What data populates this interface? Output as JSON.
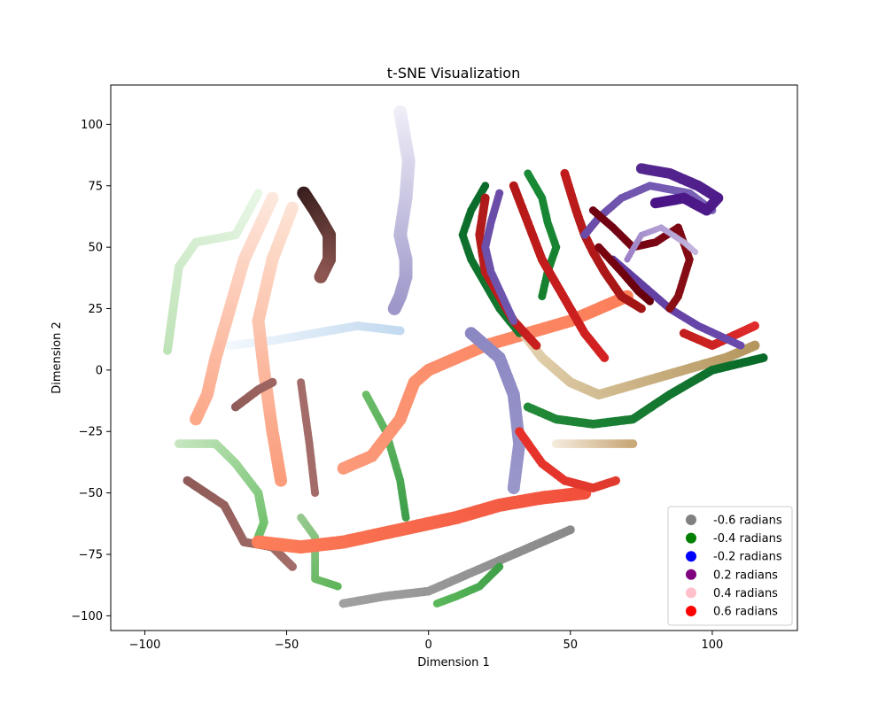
{
  "chart_data": {
    "type": "scatter",
    "title": "t-SNE Visualization",
    "xlabel": "Dimension 1",
    "ylabel": "Dimension 2",
    "xlim": [
      -112,
      130
    ],
    "ylim": [
      -106,
      116
    ],
    "x_ticks": [
      -100,
      -50,
      0,
      50,
      100
    ],
    "y_ticks": [
      -100,
      -75,
      -50,
      -25,
      0,
      25,
      50,
      75,
      100
    ],
    "x_tick_labels": [
      "−100",
      "−50",
      "0",
      "50",
      "100"
    ],
    "y_tick_labels": [
      "−100",
      "−75",
      "−50",
      "−25",
      "0",
      "25",
      "50",
      "75",
      "100"
    ],
    "grid": false,
    "legend_position": "bottom-right",
    "legend": [
      {
        "label": "-0.6 radians",
        "color": "#808080"
      },
      {
        "label": "-0.4 radians",
        "color": "#008000"
      },
      {
        "label": "-0.2 radians",
        "color": "#0000ff"
      },
      {
        "label": "0.2 radians",
        "color": "#800080"
      },
      {
        "label": "0.4 radians",
        "color": "#ffc0cb"
      },
      {
        "label": "0.6 radians",
        "color": "#ff0000"
      }
    ],
    "strands": [
      {
        "c1": "#f0eef8",
        "c2": "#9d98c9",
        "w": 15,
        "pts": [
          [
            -10,
            105
          ],
          [
            -7,
            85
          ],
          [
            -8,
            70
          ],
          [
            -10,
            55
          ],
          [
            -8,
            45
          ],
          [
            -8,
            38
          ],
          [
            -10,
            30
          ],
          [
            -12,
            25
          ]
        ]
      },
      {
        "c1": "#f3f8fd",
        "c2": "#c3daf0",
        "w": 10,
        "pts": [
          [
            -70,
            10
          ],
          [
            -55,
            12
          ],
          [
            -40,
            15
          ],
          [
            -25,
            18
          ],
          [
            -10,
            16
          ]
        ]
      },
      {
        "c1": "#e8f6e6",
        "c2": "#bfe3b8",
        "w": 10,
        "pts": [
          [
            -60,
            72
          ],
          [
            -68,
            55
          ],
          [
            -82,
            52
          ],
          [
            -88,
            42
          ],
          [
            -90,
            25
          ],
          [
            -92,
            8
          ]
        ]
      },
      {
        "c1": "#fde8de",
        "c2": "#fca98a",
        "w": 14,
        "pts": [
          [
            -55,
            70
          ],
          [
            -65,
            45
          ],
          [
            -70,
            25
          ],
          [
            -75,
            5
          ],
          [
            -78,
            -10
          ],
          [
            -82,
            -20
          ]
        ]
      },
      {
        "c1": "#fde4d6",
        "c2": "#fb9d7c",
        "w": 14,
        "pts": [
          [
            -48,
            66
          ],
          [
            -55,
            45
          ],
          [
            -60,
            20
          ],
          [
            -58,
            0
          ],
          [
            -55,
            -25
          ],
          [
            -52,
            -45
          ]
        ]
      },
      {
        "c1": "#3a1f1e",
        "c2": "#8c5550",
        "w": 15,
        "pts": [
          [
            -44,
            72
          ],
          [
            -40,
            65
          ],
          [
            -35,
            55
          ],
          [
            -35,
            45
          ],
          [
            -38,
            38
          ]
        ]
      },
      {
        "c1": "#c7e6c0",
        "c2": "#6dbf68",
        "w": 10,
        "pts": [
          [
            -88,
            -30
          ],
          [
            -75,
            -30
          ],
          [
            -68,
            -38
          ],
          [
            -60,
            -50
          ],
          [
            -58,
            -62
          ],
          [
            -60,
            -68
          ]
        ]
      },
      {
        "c1": "#97c98f",
        "c2": "#5fb55a",
        "w": 9,
        "pts": [
          [
            -45,
            -60
          ],
          [
            -40,
            -68
          ],
          [
            -40,
            -85
          ],
          [
            -32,
            -88
          ]
        ]
      },
      {
        "c1": "#6cbd68",
        "c2": "#3e9f4a",
        "w": 9,
        "pts": [
          [
            -22,
            -10
          ],
          [
            -15,
            -25
          ],
          [
            -10,
            -45
          ],
          [
            -8,
            -60
          ]
        ]
      },
      {
        "c1": "#8f5b58",
        "c2": "#a26c68",
        "w": 10,
        "pts": [
          [
            -85,
            -45
          ],
          [
            -72,
            -55
          ],
          [
            -65,
            -70
          ],
          [
            -55,
            -72
          ],
          [
            -48,
            -80
          ]
        ]
      },
      {
        "c1": "#8f5b58",
        "c2": "#9e6662",
        "w": 10,
        "pts": [
          [
            -68,
            -15
          ],
          [
            -60,
            -8
          ],
          [
            -55,
            -5
          ]
        ]
      },
      {
        "c1": "#a36c68",
        "c2": "#a36c68",
        "w": 9,
        "pts": [
          [
            -45,
            -5
          ],
          [
            -42,
            -30
          ],
          [
            -40,
            -50
          ]
        ]
      },
      {
        "c1": "#fb9a7a",
        "c2": "#fc7f5a",
        "w": 14,
        "pts": [
          [
            -30,
            -40
          ],
          [
            -20,
            -35
          ],
          [
            -10,
            -20
          ],
          [
            -5,
            -5
          ],
          [
            0,
            0
          ],
          [
            10,
            5
          ],
          [
            20,
            10
          ],
          [
            35,
            15
          ],
          [
            50,
            20
          ],
          [
            70,
            30
          ]
        ]
      },
      {
        "c1": "#fc7f5a",
        "c2": "#f2503c",
        "w": 15,
        "pts": [
          [
            -60,
            -70
          ],
          [
            -45,
            -72
          ],
          [
            -30,
            -70
          ],
          [
            -10,
            -65
          ],
          [
            10,
            -60
          ],
          [
            25,
            -55
          ],
          [
            40,
            -52
          ],
          [
            55,
            -50
          ]
        ]
      },
      {
        "c1": "#8b87c2",
        "c2": "#9996ca",
        "w": 14,
        "pts": [
          [
            15,
            15
          ],
          [
            25,
            5
          ],
          [
            30,
            -10
          ],
          [
            32,
            -30
          ],
          [
            30,
            -48
          ]
        ]
      },
      {
        "c1": "#e8d8b8",
        "c2": "#b5965e",
        "w": 11,
        "pts": [
          [
            30,
            20
          ],
          [
            40,
            5
          ],
          [
            50,
            -5
          ],
          [
            60,
            -10
          ],
          [
            75,
            -5
          ],
          [
            90,
            0
          ],
          [
            105,
            5
          ],
          [
            115,
            10
          ]
        ]
      },
      {
        "c1": "#f5ebdc",
        "c2": "#c9a87a",
        "w": 10,
        "pts": [
          [
            45,
            -30
          ],
          [
            52,
            -30
          ],
          [
            62,
            -30
          ],
          [
            72,
            -30
          ]
        ]
      },
      {
        "c1": "#228a38",
        "c2": "#0a6a2a",
        "w": 10,
        "pts": [
          [
            35,
            -15
          ],
          [
            45,
            -20
          ],
          [
            58,
            -22
          ],
          [
            72,
            -20
          ],
          [
            85,
            -10
          ],
          [
            100,
            0
          ],
          [
            118,
            5
          ]
        ]
      },
      {
        "c1": "#0a6a2a",
        "c2": "#13792f",
        "w": 9,
        "pts": [
          [
            20,
            75
          ],
          [
            15,
            65
          ],
          [
            12,
            55
          ],
          [
            15,
            45
          ],
          [
            20,
            35
          ],
          [
            25,
            25
          ],
          [
            32,
            15
          ]
        ]
      },
      {
        "c1": "#1a8a36",
        "c2": "#16802f",
        "w": 9,
        "pts": [
          [
            35,
            80
          ],
          [
            40,
            70
          ],
          [
            42,
            60
          ],
          [
            45,
            50
          ],
          [
            42,
            40
          ],
          [
            40,
            30
          ]
        ]
      },
      {
        "c1": "#ad1a1a",
        "c2": "#c91e1e",
        "w": 10,
        "pts": [
          [
            20,
            70
          ],
          [
            18,
            55
          ],
          [
            20,
            40
          ],
          [
            25,
            30
          ],
          [
            30,
            20
          ],
          [
            38,
            10
          ]
        ]
      },
      {
        "c1": "#b31818",
        "c2": "#d42121",
        "w": 10,
        "pts": [
          [
            30,
            75
          ],
          [
            35,
            60
          ],
          [
            40,
            45
          ],
          [
            45,
            35
          ],
          [
            50,
            25
          ],
          [
            55,
            15
          ],
          [
            62,
            5
          ]
        ]
      },
      {
        "c1": "#c11c1c",
        "c2": "#a31616",
        "w": 10,
        "pts": [
          [
            48,
            80
          ],
          [
            52,
            65
          ],
          [
            55,
            55
          ],
          [
            58,
            48
          ],
          [
            62,
            40
          ],
          [
            68,
            30
          ],
          [
            75,
            25
          ]
        ]
      },
      {
        "c1": "#c11c1c",
        "c2": "#e02b2b",
        "w": 10,
        "pts": [
          [
            90,
            15
          ],
          [
            100,
            10
          ],
          [
            115,
            18
          ]
        ]
      },
      {
        "c1": "#e7302a",
        "c2": "#e13b30",
        "w": 10,
        "pts": [
          [
            32,
            -25
          ],
          [
            40,
            -38
          ],
          [
            48,
            -45
          ],
          [
            58,
            -48
          ],
          [
            66,
            -45
          ]
        ]
      },
      {
        "c1": "#6a4ca8",
        "c2": "#6f56ad",
        "w": 9,
        "pts": [
          [
            25,
            72
          ],
          [
            22,
            60
          ],
          [
            20,
            50
          ],
          [
            22,
            40
          ],
          [
            26,
            30
          ],
          [
            30,
            20
          ]
        ]
      },
      {
        "c1": "#6a4ca8",
        "c2": "#7a63b8",
        "w": 9,
        "pts": [
          [
            55,
            55
          ],
          [
            60,
            62
          ],
          [
            68,
            70
          ],
          [
            78,
            75
          ],
          [
            92,
            72
          ],
          [
            100,
            65
          ]
        ]
      },
      {
        "c1": "#5e3b9f",
        "c2": "#6b4aad",
        "w": 9,
        "pts": [
          [
            65,
            45
          ],
          [
            75,
            35
          ],
          [
            85,
            25
          ],
          [
            95,
            18
          ],
          [
            110,
            10
          ]
        ]
      },
      {
        "c1": "#54278f",
        "c2": "#4a1486",
        "w": 12,
        "pts": [
          [
            75,
            82
          ],
          [
            85,
            80
          ],
          [
            95,
            75
          ],
          [
            102,
            70
          ],
          [
            98,
            65
          ],
          [
            90,
            70
          ],
          [
            80,
            68
          ]
        ]
      },
      {
        "c1": "#6e0012",
        "c2": "#8a0f15",
        "w": 9,
        "pts": [
          [
            58,
            65
          ],
          [
            65,
            58
          ],
          [
            72,
            50
          ],
          [
            80,
            52
          ],
          [
            88,
            58
          ],
          [
            92,
            45
          ],
          [
            88,
            30
          ],
          [
            85,
            25
          ]
        ]
      },
      {
        "c1": "#7a0510",
        "c2": "#67000d",
        "w": 9,
        "pts": [
          [
            60,
            50
          ],
          [
            68,
            40
          ],
          [
            74,
            32
          ],
          [
            78,
            28
          ]
        ]
      },
      {
        "c1": "#9a7fc4",
        "c2": "#c4b6df",
        "w": 7,
        "pts": [
          [
            70,
            45
          ],
          [
            75,
            55
          ],
          [
            82,
            58
          ],
          [
            90,
            52
          ],
          [
            94,
            48
          ]
        ]
      },
      {
        "c1": "#a0a0a0",
        "c2": "#8a8a8a",
        "w": 10,
        "pts": [
          [
            -30,
            -95
          ],
          [
            -15,
            -92
          ],
          [
            0,
            -90
          ],
          [
            10,
            -85
          ],
          [
            20,
            -80
          ],
          [
            30,
            -75
          ],
          [
            40,
            -70
          ],
          [
            50,
            -65
          ]
        ]
      },
      {
        "c1": "#5cb85c",
        "c2": "#3fa048",
        "w": 9,
        "pts": [
          [
            3,
            -95
          ],
          [
            10,
            -92
          ],
          [
            18,
            -88
          ],
          [
            25,
            -80
          ]
        ]
      }
    ]
  }
}
